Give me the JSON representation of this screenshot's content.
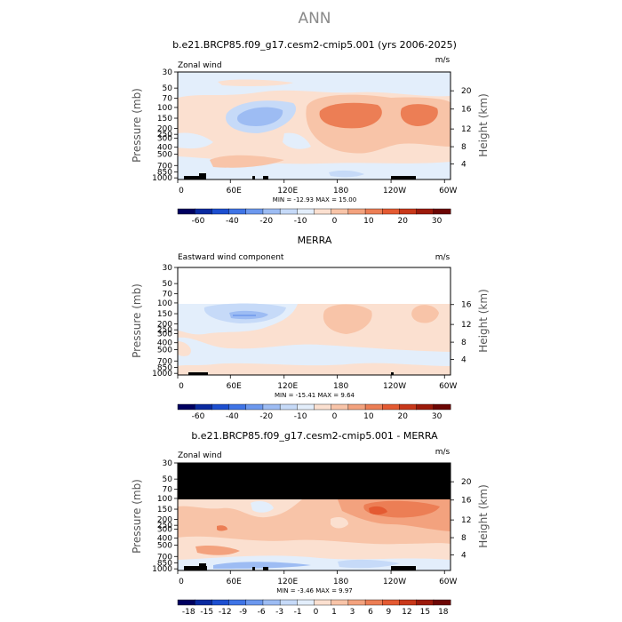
{
  "page": {
    "title": "ANN"
  },
  "chart_data": [
    {
      "type": "heatmap",
      "title": "b.e21.BRCP85.f09_g17.cesm2-cmip5.001 (yrs 2006-2025)",
      "left_label": "Zonal wind",
      "units": "m/s",
      "ylabel": "Pressure (mb)",
      "ylabel_right": "Height (km)",
      "y_ticks": [
        "30",
        "50",
        "70",
        "100",
        "150",
        "200",
        "250",
        "300",
        "400",
        "500",
        "700",
        "850",
        "1000"
      ],
      "y_right_ticks": [
        "20",
        "16",
        "12",
        "8",
        "4"
      ],
      "x_ticks": [
        "0",
        "60E",
        "120E",
        "180",
        "120W",
        "60W"
      ],
      "stats": "MIN = -12.93   MAX =  15.00",
      "colorbar": {
        "labels": [
          "-60",
          "-40",
          "-20",
          "-10",
          "0",
          "10",
          "20",
          "30"
        ],
        "colors": [
          "#000060",
          "#0a2aa0",
          "#1d4fd0",
          "#3f74e6",
          "#6c98ee",
          "#9dbcf3",
          "#c6daf8",
          "#e3eefb",
          "#fbe0d0",
          "#f8c4a8",
          "#f3a27e",
          "#ec7e55",
          "#e45a32",
          "#c8381a",
          "#9c1a0a",
          "#6c0604"
        ]
      }
    },
    {
      "type": "heatmap",
      "title": "MERRA",
      "left_label": "Eastward wind component",
      "units": "m/s",
      "ylabel": "Pressure (mb)",
      "ylabel_right": "Height (km)",
      "y_ticks": [
        "30",
        "50",
        "70",
        "100",
        "150",
        "200",
        "250",
        "300",
        "400",
        "500",
        "700",
        "850",
        "1000"
      ],
      "y_right_ticks": [
        "16",
        "12",
        "8",
        "4"
      ],
      "x_ticks": [
        "0",
        "60E",
        "120E",
        "180",
        "120W",
        "60W"
      ],
      "stats": "MIN = -15.41   MAX =  9.64",
      "colorbar": {
        "labels": [
          "-60",
          "-40",
          "-20",
          "-10",
          "0",
          "10",
          "20",
          "30"
        ],
        "colors": [
          "#000060",
          "#0a2aa0",
          "#1d4fd0",
          "#3f74e6",
          "#6c98ee",
          "#9dbcf3",
          "#c6daf8",
          "#e3eefb",
          "#fbe0d0",
          "#f8c4a8",
          "#f3a27e",
          "#ec7e55",
          "#e45a32",
          "#c8381a",
          "#9c1a0a",
          "#6c0604"
        ]
      }
    },
    {
      "type": "heatmap",
      "title": "b.e21.BRCP85.f09_g17.cesm2-cmip5.001 - MERRA",
      "left_label": "Zonal wind",
      "units": "m/s",
      "ylabel": "Pressure (mb)",
      "ylabel_right": "Height (km)",
      "y_ticks": [
        "30",
        "50",
        "70",
        "100",
        "150",
        "200",
        "250",
        "300",
        "400",
        "500",
        "700",
        "850",
        "1000"
      ],
      "y_right_ticks": [
        "20",
        "16",
        "12",
        "8",
        "4"
      ],
      "x_ticks": [
        "0",
        "60E",
        "120E",
        "180",
        "120W",
        "60W"
      ],
      "stats": "MIN = -3.46   MAX =  9.97",
      "colorbar": {
        "labels": [
          "-18",
          "-15",
          "-12",
          "-9",
          "-6",
          "-3",
          "-1",
          "0",
          "1",
          "3",
          "6",
          "9",
          "12",
          "15",
          "18"
        ],
        "colors": [
          "#000060",
          "#0a2aa0",
          "#1d4fd0",
          "#3f74e6",
          "#6c98ee",
          "#9dbcf3",
          "#c6daf8",
          "#e3eefb",
          "#fbe0d0",
          "#f8c4a8",
          "#f3a27e",
          "#ec7e55",
          "#e45a32",
          "#c8381a",
          "#9c1a0a",
          "#6c0604"
        ]
      }
    }
  ]
}
